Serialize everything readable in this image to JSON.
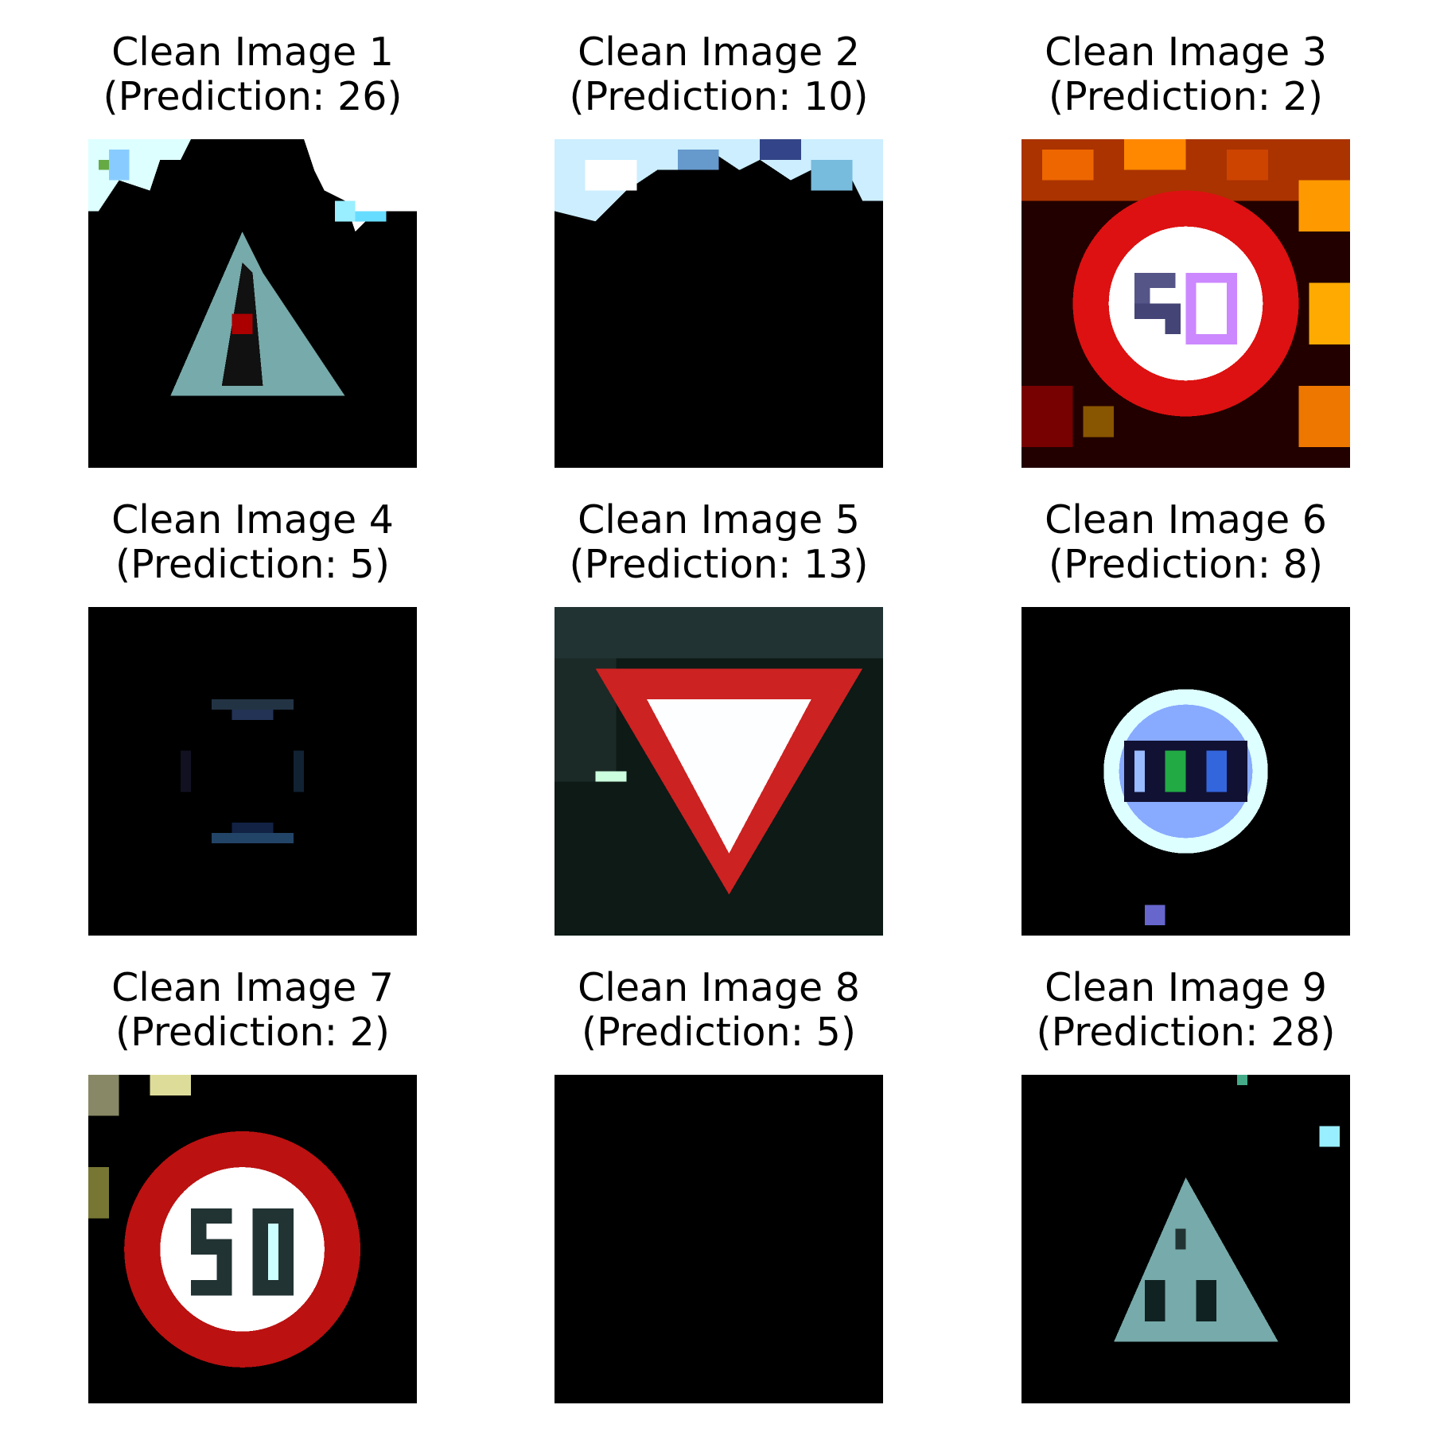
{
  "panels": [
    {
      "title": "Clean Image 1",
      "subtitle": "(Prediction: 26)",
      "scene": "warning-triangle-sky"
    },
    {
      "title": "Clean Image 2",
      "subtitle": "(Prediction: 10)",
      "scene": "dark-sky-top"
    },
    {
      "title": "Clean Image 3",
      "subtitle": "(Prediction: 2)",
      "scene": "speed-limit-50-autumn"
    },
    {
      "title": "Clean Image 4",
      "subtitle": "(Prediction: 5)",
      "scene": "dark-circular-sign"
    },
    {
      "title": "Clean Image 5",
      "subtitle": "(Prediction: 13)",
      "scene": "yield-sign"
    },
    {
      "title": "Clean Image 6",
      "subtitle": "(Prediction: 8)",
      "scene": "speed-limit-120"
    },
    {
      "title": "Clean Image 7",
      "subtitle": "(Prediction: 2)",
      "scene": "speed-limit-50"
    },
    {
      "title": "Clean Image 8",
      "subtitle": "(Prediction: 5)",
      "scene": "black"
    },
    {
      "title": "Clean Image 9",
      "subtitle": "(Prediction: 28)",
      "scene": "warning-triangle-children"
    }
  ]
}
